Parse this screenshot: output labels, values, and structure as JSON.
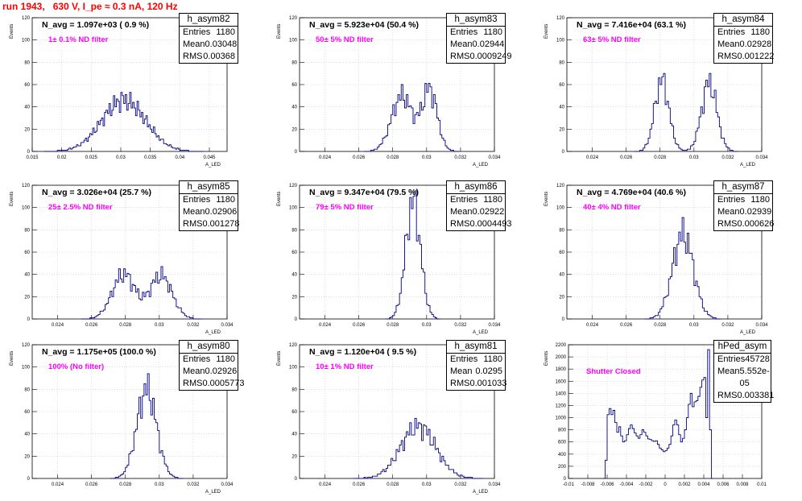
{
  "title": "run 1943,   630 V, I_pe ≈ 0.3 nA, 120 Hz",
  "colors": {
    "title": "#ff0000",
    "hist": "#000080",
    "filter_text": "#ff00ff",
    "grid": "#c8c8c8"
  },
  "common": {
    "ylabel": "Events",
    "stats_labels": {
      "entries": "Entries",
      "mean": "Mean",
      "rms": "RMS"
    }
  },
  "chart_data": [
    {
      "type": "histogram",
      "name": "h_asym82",
      "xlabel": "A_LED",
      "ylabel": "Events",
      "xlim": [
        0.015,
        0.048
      ],
      "ylim": [
        0,
        120
      ],
      "grid": true,
      "xticks": [
        0.015,
        0.02,
        0.025,
        0.03,
        0.035,
        0.04,
        0.045
      ],
      "xtick_labels": [
        "0.015",
        "0.02",
        "0.025",
        "0.03",
        "0.035",
        "0.04",
        "0.045"
      ],
      "yticks": [
        0,
        20,
        40,
        60,
        80,
        100,
        120
      ],
      "ytick_labels": [
        "0",
        "20",
        "40",
        "60",
        "80",
        "100",
        "120"
      ],
      "n_avg": "N_avg = 1.097e+03 ( 0.9 %)",
      "filter": "1± 0.1% ND filter",
      "stats": {
        "entries": "1180",
        "mean": "0.03048",
        "rms": "0.00368"
      },
      "shape": {
        "mode": "gauss",
        "bin_width": 0.00025,
        "peaks": [
          {
            "mu": 0.0305,
            "sigma": 0.0037,
            "h": 46
          }
        ]
      }
    },
    {
      "type": "histogram",
      "name": "h_asym83",
      "xlabel": "A_LED",
      "ylabel": "Events",
      "xlim": [
        0.0225,
        0.034
      ],
      "ylim": [
        0,
        120
      ],
      "grid": true,
      "xticks": [
        0.024,
        0.026,
        0.028,
        0.03,
        0.032,
        0.034
      ],
      "xtick_labels": [
        "0.024",
        "0.026",
        "0.028",
        "0.03",
        "0.032",
        "0.034"
      ],
      "yticks": [
        0,
        20,
        40,
        60,
        80,
        100,
        120
      ],
      "ytick_labels": [
        "0",
        "20",
        "40",
        "60",
        "80",
        "100",
        "120"
      ],
      "n_avg": "N_avg = 5.923e+04 (50.4 %)",
      "filter": "50± 5% ND filter",
      "stats": {
        "entries": "1180",
        "mean": "0.02944",
        "rms": "0.0009249"
      },
      "shape": {
        "mode": "gauss",
        "bin_width": 0.0001,
        "peaks": [
          {
            "mu": 0.02855,
            "sigma": 0.00062,
            "h": 50
          },
          {
            "mu": 0.03018,
            "sigma": 0.00045,
            "h": 55
          }
        ]
      }
    },
    {
      "type": "histogram",
      "name": "h_asym84",
      "xlabel": "A_LED",
      "ylabel": "Events",
      "xlim": [
        0.0225,
        0.034
      ],
      "ylim": [
        0,
        120
      ],
      "grid": true,
      "xticks": [
        0.024,
        0.026,
        0.028,
        0.03,
        0.032,
        0.034
      ],
      "xtick_labels": [
        "0.024",
        "0.026",
        "0.028",
        "0.03",
        "0.032",
        "0.034"
      ],
      "yticks": [
        0,
        20,
        40,
        60,
        80,
        100,
        120
      ],
      "ytick_labels": [
        "0",
        "20",
        "40",
        "60",
        "80",
        "100",
        "120"
      ],
      "n_avg": "N_avg = 7.416e+04 (63.1 %)",
      "filter": "63± 5% ND filter",
      "stats": {
        "entries": "1180",
        "mean": "0.02928",
        "rms": "0.001222"
      },
      "shape": {
        "mode": "gauss",
        "bin_width": 0.0001,
        "peaks": [
          {
            "mu": 0.0281,
            "sigma": 0.00042,
            "h": 64
          },
          {
            "mu": 0.0309,
            "sigma": 0.00045,
            "h": 62
          }
        ]
      }
    },
    {
      "type": "histogram",
      "name": "h_asym85",
      "xlabel": "A_LED",
      "ylabel": "Events",
      "xlim": [
        0.0225,
        0.034
      ],
      "ylim": [
        0,
        120
      ],
      "grid": true,
      "xticks": [
        0.024,
        0.026,
        0.028,
        0.03,
        0.032,
        0.034
      ],
      "xtick_labels": [
        "0.024",
        "0.026",
        "0.028",
        "0.03",
        "0.032",
        "0.034"
      ],
      "yticks": [
        0,
        20,
        40,
        60,
        80,
        100,
        120
      ],
      "ytick_labels": [
        "0",
        "20",
        "40",
        "60",
        "80",
        "100",
        "120"
      ],
      "n_avg": "N_avg = 3.026e+04 (25.7 %)",
      "filter": "25± 2.5% ND filter",
      "stats": {
        "entries": "1180",
        "mean": "0.02906",
        "rms": "0.001278"
      },
      "shape": {
        "mode": "gauss",
        "bin_width": 0.0001,
        "peaks": [
          {
            "mu": 0.0279,
            "sigma": 0.00068,
            "h": 40
          },
          {
            "mu": 0.0301,
            "sigma": 0.00065,
            "h": 39
          }
        ]
      }
    },
    {
      "type": "histogram",
      "name": "h_asym86",
      "xlabel": "A_LED",
      "ylabel": "Events",
      "xlim": [
        0.0225,
        0.034
      ],
      "ylim": [
        0,
        120
      ],
      "grid": true,
      "xticks": [
        0.024,
        0.026,
        0.028,
        0.03,
        0.032,
        0.034
      ],
      "xtick_labels": [
        "0.024",
        "0.026",
        "0.028",
        "0.03",
        "0.032",
        "0.034"
      ],
      "yticks": [
        0,
        20,
        40,
        60,
        80,
        100,
        120
      ],
      "ytick_labels": [
        "0",
        "20",
        "40",
        "60",
        "80",
        "100",
        "120"
      ],
      "n_avg": "N_avg = 9.347e+04 (79.5 %)",
      "filter": "79± 5% ND filter",
      "stats": {
        "entries": "1180",
        "mean": "0.02922",
        "rms": "0.0004493"
      },
      "shape": {
        "mode": "gauss",
        "bin_width": 0.0001,
        "peaks": [
          {
            "mu": 0.0292,
            "sigma": 0.00044,
            "h": 105
          }
        ]
      }
    },
    {
      "type": "histogram",
      "name": "h_asym87",
      "xlabel": "A_LED",
      "ylabel": "Events",
      "xlim": [
        0.0225,
        0.034
      ],
      "ylim": [
        0,
        120
      ],
      "grid": true,
      "xticks": [
        0.024,
        0.026,
        0.028,
        0.03,
        0.032,
        0.034
      ],
      "xtick_labels": [
        "0.024",
        "0.026",
        "0.028",
        "0.03",
        "0.032",
        "0.034"
      ],
      "yticks": [
        0,
        20,
        40,
        60,
        80,
        100,
        120
      ],
      "ytick_labels": [
        "0",
        "20",
        "40",
        "60",
        "80",
        "100",
        "120"
      ],
      "n_avg": "N_avg = 4.769e+04 (40.6 %)",
      "filter": "40± 4% ND filter",
      "stats": {
        "entries": "1180",
        "mean": "0.02939",
        "rms": "0.000626"
      },
      "shape": {
        "mode": "gauss",
        "bin_width": 0.0001,
        "peaks": [
          {
            "mu": 0.02935,
            "sigma": 0.00062,
            "h": 76
          }
        ]
      }
    },
    {
      "type": "histogram",
      "name": "h_asym80",
      "xlabel": "A_LED",
      "ylabel": "Events",
      "xlim": [
        0.0225,
        0.034
      ],
      "ylim": [
        0,
        120
      ],
      "grid": true,
      "xticks": [
        0.024,
        0.026,
        0.028,
        0.03,
        0.032,
        0.034
      ],
      "xtick_labels": [
        "0.024",
        "0.026",
        "0.028",
        "0.03",
        "0.032",
        "0.034"
      ],
      "yticks": [
        0,
        20,
        40,
        60,
        80,
        100,
        120
      ],
      "ytick_labels": [
        "0",
        "20",
        "40",
        "60",
        "80",
        "100",
        "120"
      ],
      "n_avg": "N_avg = 1.175e+05 (100.0 %)",
      "filter": "100% (No filter)",
      "stats": {
        "entries": "1180",
        "mean": "0.02926",
        "rms": "0.0005773"
      },
      "shape": {
        "mode": "gauss",
        "bin_width": 0.0001,
        "peaks": [
          {
            "mu": 0.02925,
            "sigma": 0.00058,
            "h": 80
          }
        ]
      }
    },
    {
      "type": "histogram",
      "name": "h_asym81",
      "xlabel": "A_LED",
      "ylabel": "Events",
      "xlim": [
        0.0225,
        0.034
      ],
      "ylim": [
        0,
        120
      ],
      "grid": true,
      "xticks": [
        0.024,
        0.026,
        0.028,
        0.03,
        0.032,
        0.034
      ],
      "xtick_labels": [
        "0.024",
        "0.026",
        "0.028",
        "0.03",
        "0.032",
        "0.034"
      ],
      "yticks": [
        0,
        20,
        40,
        60,
        80,
        100,
        120
      ],
      "ytick_labels": [
        "0",
        "20",
        "40",
        "60",
        "80",
        "100",
        "120"
      ],
      "n_avg": "N_avg = 1.120e+04 ( 9.5 %)",
      "filter": "10± 1% ND filter",
      "stats": {
        "entries": "1180",
        "mean": "0.0295",
        "rms": "0.001033"
      },
      "shape": {
        "mode": "gauss",
        "bin_width": 0.0001,
        "peaks": [
          {
            "mu": 0.0295,
            "sigma": 0.00103,
            "h": 47
          }
        ]
      }
    },
    {
      "type": "histogram",
      "name": "hPed_asym",
      "xlabel": "",
      "ylabel": "Events",
      "xlim": [
        -0.01,
        0.01
      ],
      "ylim": [
        0,
        2200
      ],
      "grid": true,
      "xticks": [
        -0.01,
        -0.008,
        -0.006,
        -0.004,
        -0.002,
        0,
        0.002,
        0.004,
        0.006,
        0.008,
        0.01
      ],
      "xtick_labels": [
        "-0.01",
        "-0.008",
        "-0.006",
        "-0.004",
        "-0.002",
        "0",
        "0.002",
        "0.004",
        "0.006",
        "0.008",
        "0.01"
      ],
      "yticks": [
        0,
        200,
        400,
        600,
        800,
        1000,
        1200,
        1400,
        1600,
        1800,
        2000,
        2200
      ],
      "ytick_labels": [
        "0",
        "200",
        "400",
        "600",
        "800",
        "1000",
        "1200",
        "1400",
        "1600",
        "1800",
        "2000",
        "2200"
      ],
      "n_avg": "",
      "filter": "Shutter Closed",
      "stats": {
        "entries": "45728",
        "mean": "5.552e-05",
        "rms": "0.003381"
      },
      "shape": {
        "mode": "points",
        "bin_width": 0.0002,
        "points": [
          [
            -0.0064,
            0
          ],
          [
            -0.0062,
            300
          ],
          [
            -0.006,
            1050
          ],
          [
            -0.0058,
            1150
          ],
          [
            -0.0056,
            1050
          ],
          [
            -0.0054,
            1120
          ],
          [
            -0.0052,
            920
          ],
          [
            -0.005,
            760
          ],
          [
            -0.0048,
            850
          ],
          [
            -0.0046,
            700
          ],
          [
            -0.0044,
            600
          ],
          [
            -0.0042,
            620
          ],
          [
            -0.004,
            720
          ],
          [
            -0.0038,
            820
          ],
          [
            -0.0036,
            880
          ],
          [
            -0.0034,
            820
          ],
          [
            -0.0032,
            750
          ],
          [
            -0.003,
            700
          ],
          [
            -0.0028,
            660
          ],
          [
            -0.0026,
            720
          ],
          [
            -0.0024,
            800
          ],
          [
            -0.0022,
            760
          ],
          [
            -0.002,
            700
          ],
          [
            -0.0018,
            650
          ],
          [
            -0.0016,
            640
          ],
          [
            -0.0014,
            620
          ],
          [
            -0.0012,
            610
          ],
          [
            -0.001,
            620
          ],
          [
            -0.0008,
            560
          ],
          [
            -0.0006,
            500
          ],
          [
            -0.0004,
            470
          ],
          [
            -0.0002,
            440
          ],
          [
            0,
            460
          ],
          [
            0.0002,
            500
          ],
          [
            0.0004,
            560
          ],
          [
            0.0006,
            700
          ],
          [
            0.0008,
            880
          ],
          [
            0.001,
            960
          ],
          [
            0.0012,
            880
          ],
          [
            0.0014,
            720
          ],
          [
            0.0016,
            600
          ],
          [
            0.0018,
            660
          ],
          [
            0.002,
            800
          ],
          [
            0.0022,
            1000
          ],
          [
            0.0024,
            1220
          ],
          [
            0.0026,
            1400
          ],
          [
            0.0028,
            1180
          ],
          [
            0.003,
            1260
          ],
          [
            0.0032,
            1280
          ],
          [
            0.0034,
            1350
          ],
          [
            0.0036,
            1500
          ],
          [
            0.0038,
            1620
          ],
          [
            0.004,
            1660
          ],
          [
            0.0042,
            1000
          ],
          [
            0.0044,
            2120
          ],
          [
            0.0046,
            800
          ],
          [
            0.0048,
            0
          ]
        ]
      }
    }
  ]
}
